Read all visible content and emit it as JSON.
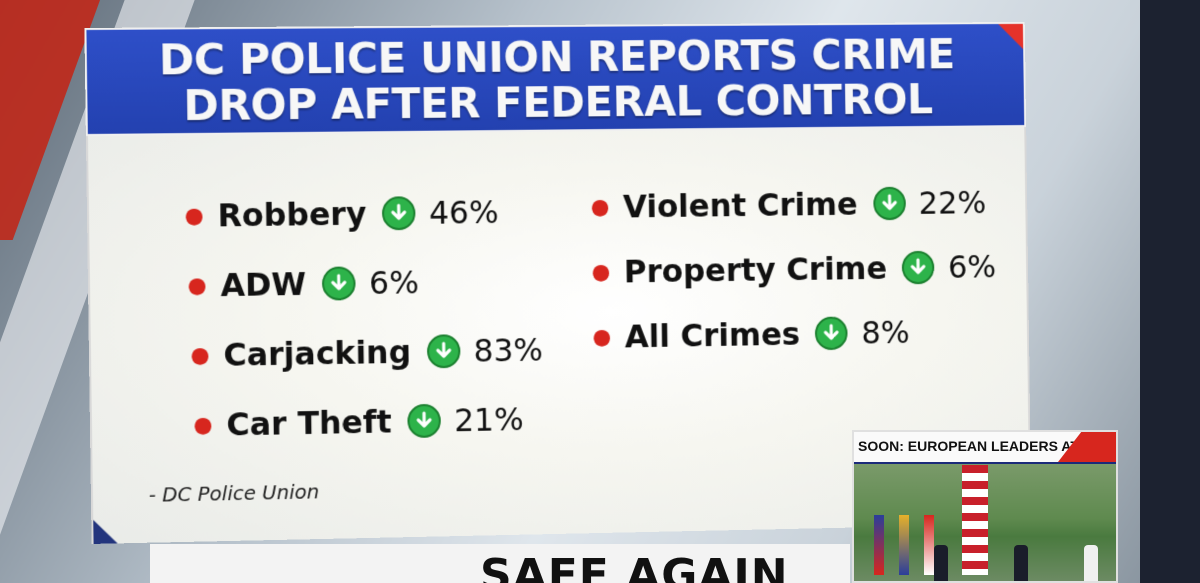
{
  "header": {
    "title_line1": "DC POLICE UNION REPORTS CRIME",
    "title_line2": "DROP AFTER FEDERAL CONTROL"
  },
  "stats_left": [
    {
      "label": "Robbery",
      "icon": "down-arrow-icon",
      "value": "46%"
    },
    {
      "label": "ADW",
      "icon": "down-arrow-icon",
      "value": "6%"
    },
    {
      "label": "Carjacking",
      "icon": "down-arrow-icon",
      "value": "83%"
    },
    {
      "label": "Car Theft",
      "icon": "down-arrow-icon",
      "value": "21%"
    }
  ],
  "stats_right": [
    {
      "label": "Violent Crime",
      "icon": "down-arrow-icon",
      "value": "22%"
    },
    {
      "label": "Property Crime",
      "icon": "down-arrow-icon",
      "value": "6%"
    },
    {
      "label": "All Crimes",
      "icon": "down-arrow-icon",
      "value": "8%"
    }
  ],
  "source": "- DC Police Union",
  "inset": {
    "label": "SOON: EUROPEAN LEADERS AT WH"
  },
  "ticker": {
    "text": "SAFE AGAIN"
  },
  "colors": {
    "header_blue": "#2341b0",
    "bullet_red": "#d7261e",
    "arrow_green": "#2db34a"
  }
}
